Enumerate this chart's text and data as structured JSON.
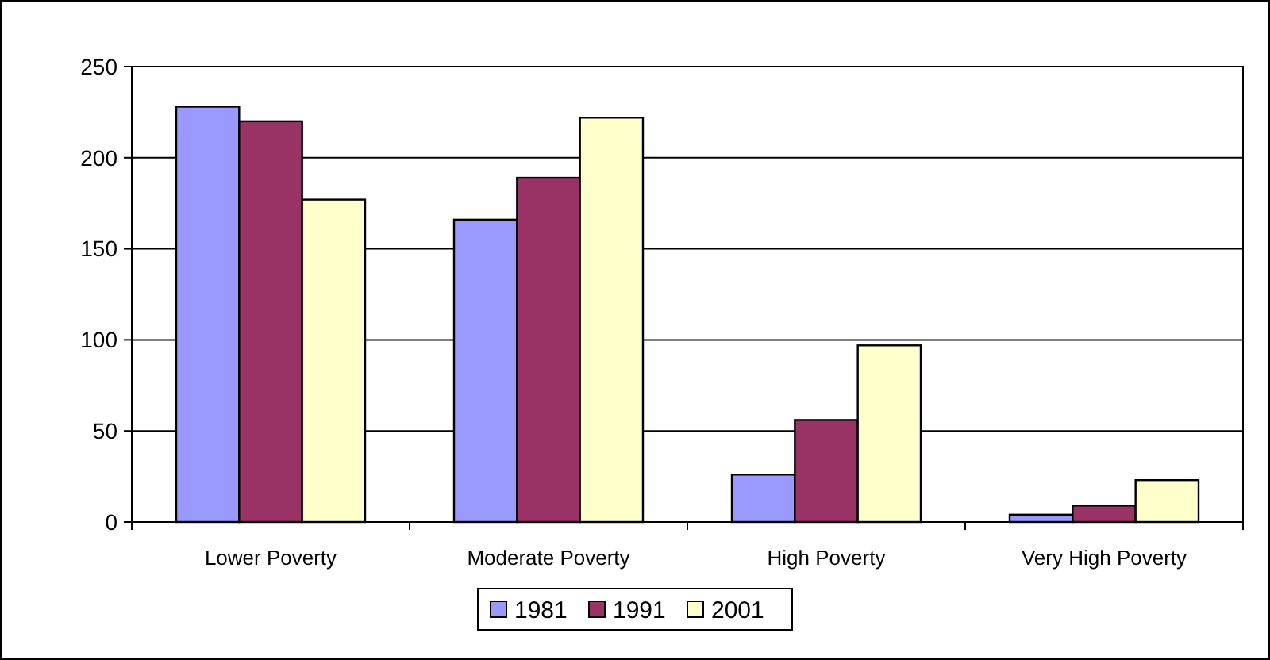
{
  "chart_data": {
    "type": "bar",
    "categories": [
      "Lower Poverty",
      "Moderate Poverty",
      "High Poverty",
      "Very High Poverty"
    ],
    "series": [
      {
        "name": "1981",
        "color": "#9999ff",
        "values": [
          228,
          166,
          26,
          4
        ]
      },
      {
        "name": "1991",
        "color": "#993366",
        "values": [
          220,
          189,
          56,
          9
        ]
      },
      {
        "name": "2001",
        "color": "#ffffcc",
        "values": [
          177,
          222,
          97,
          23
        ]
      }
    ],
    "ylim": [
      0,
      250
    ],
    "yticks": [
      0,
      50,
      100,
      150,
      200,
      250
    ],
    "grid": "y",
    "legend": "bottom"
  }
}
